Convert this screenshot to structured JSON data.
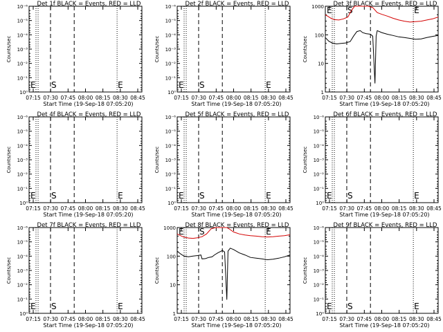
{
  "chart_data": [
    {
      "type": "line",
      "title": "Det 1f BLACK = Events, RED = LLD",
      "xlabel": "Start Time (19-Sep-18 07:05:20)",
      "ylabel": "Counts/sec",
      "y_ticks": [
        "10⁻⁶",
        "10⁻⁵",
        "10⁻⁴",
        "10⁻³",
        "10⁻²",
        "10⁻¹",
        "10⁰"
      ],
      "x_ticks": [
        "07:15",
        "07:30",
        "07:45",
        "08:00",
        "08:15",
        "08:30",
        "08:45"
      ],
      "marker_s": "S",
      "marker_e": "E",
      "y_scale": "log",
      "has_data": false,
      "series": []
    },
    {
      "type": "line",
      "title": "Det 2f BLACK = Events, RED = LLD",
      "xlabel": "Start Time (19-Sep-18 07:05:20)",
      "ylabel": "Counts/sec",
      "y_ticks": [
        "10⁻⁶",
        "10⁻⁵",
        "10⁻⁴",
        "10⁻³",
        "10⁻²",
        "10⁻¹",
        "10⁰"
      ],
      "x_ticks": [
        "07:15",
        "07:30",
        "07:45",
        "08:00",
        "08:15",
        "08:30",
        "08:45"
      ],
      "marker_s": "S",
      "marker_e": "E",
      "y_scale": "log",
      "has_data": false,
      "series": []
    },
    {
      "type": "line",
      "title": "Det 3f BLACK = Events, RED = LLD",
      "xlabel": "Start Time (19-Sep-18 07:05:20)",
      "ylabel": "Counts/sec",
      "y_ticks": [
        "1000",
        "100",
        "10",
        "1"
      ],
      "x_ticks": [
        "07:15",
        "07:30",
        "07:45",
        "08:00",
        "08:15",
        "08:30",
        "08:45"
      ],
      "marker_s": "S",
      "marker_e": "E",
      "y_scale": "log",
      "has_data": true,
      "series": [
        {
          "color": "#d40000",
          "x": [
            0,
            0.02,
            0.05,
            0.08,
            0.12,
            0.16,
            0.2,
            0.23,
            0.26,
            0.3,
            0.34,
            0.38,
            0.42,
            0.46,
            0.5,
            0.55,
            0.6,
            0.65,
            0.7,
            0.75,
            0.8,
            0.85,
            0.9,
            0.95,
            1
          ],
          "y": [
            500,
            450,
            380,
            340,
            330,
            360,
            420,
            700,
            1300,
            1600,
            1600,
            1500,
            900,
            600,
            520,
            450,
            380,
            330,
            300,
            280,
            290,
            300,
            330,
            360,
            420
          ]
        },
        {
          "color": "#000000",
          "x": [
            0,
            0.03,
            0.06,
            0.1,
            0.14,
            0.18,
            0.22,
            0.25,
            0.28,
            0.31,
            0.33,
            0.36,
            0.4,
            0.42,
            0.44,
            0.45,
            0.46,
            0.5,
            0.55,
            0.6,
            0.65,
            0.7,
            0.75,
            0.8,
            0.85,
            0.9,
            0.95,
            1
          ],
          "y": [
            80,
            60,
            52,
            48,
            50,
            52,
            58,
            90,
            130,
            140,
            120,
            110,
            105,
            90,
            2,
            90,
            140,
            120,
            105,
            95,
            85,
            80,
            75,
            70,
            72,
            80,
            88,
            95
          ]
        }
      ]
    },
    {
      "type": "line",
      "title": "Det 4f BLACK = Events, RED = LLD",
      "xlabel": "Start Time (19-Sep-18 07:05:20)",
      "ylabel": "Counts/sec",
      "y_ticks": [
        "10⁻⁶",
        "10⁻⁵",
        "10⁻⁴",
        "10⁻³",
        "10⁻²",
        "10⁻¹",
        "10⁰"
      ],
      "x_ticks": [
        "07:15",
        "07:30",
        "07:45",
        "08:00",
        "08:15",
        "08:30",
        "08:45"
      ],
      "marker_s": "S",
      "marker_e": "E",
      "y_scale": "log",
      "has_data": false,
      "series": []
    },
    {
      "type": "line",
      "title": "Det 5f BLACK = Events, RED = LLD",
      "xlabel": "Start Time (19-Sep-18 07:05:20)",
      "ylabel": "Counts/sec",
      "y_ticks": [
        "10⁻⁶",
        "10⁻⁵",
        "10⁻⁴",
        "10⁻³",
        "10⁻²",
        "10⁻¹",
        "10⁰"
      ],
      "x_ticks": [
        "07:15",
        "07:30",
        "07:45",
        "08:00",
        "08:15",
        "08:30",
        "08:45"
      ],
      "marker_s": "S",
      "marker_e": "E",
      "y_scale": "log",
      "has_data": false,
      "series": []
    },
    {
      "type": "line",
      "title": "Det 6f BLACK = Events, RED = LLD",
      "xlabel": "Start Time (19-Sep-18 07:05:20)",
      "ylabel": "Counts/sec",
      "y_ticks": [
        "10⁻⁶",
        "10⁻⁵",
        "10⁻⁴",
        "10⁻³",
        "10⁻²",
        "10⁻¹",
        "10⁰"
      ],
      "x_ticks": [
        "07:15",
        "07:30",
        "07:45",
        "08:00",
        "08:15",
        "08:30",
        "08:45"
      ],
      "marker_s": "S",
      "marker_e": "E",
      "y_scale": "log",
      "has_data": false,
      "series": []
    },
    {
      "type": "line",
      "title": "Det 7f BLACK = Events, RED = LLD",
      "xlabel": "Start Time (19-Sep-18 07:05:20)",
      "ylabel": "Counts/sec",
      "y_ticks": [
        "10⁻⁶",
        "10⁻⁵",
        "10⁻⁴",
        "10⁻³",
        "10⁻²",
        "10⁻¹",
        "10⁰"
      ],
      "x_ticks": [
        "07:15",
        "07:30",
        "07:45",
        "08:00",
        "08:15",
        "08:30",
        "08:45"
      ],
      "marker_s": "S",
      "marker_e": "E",
      "y_scale": "log",
      "has_data": false,
      "series": []
    },
    {
      "type": "line",
      "title": "Det 8f BLACK = Events, RED = LLD",
      "xlabel": "Start Time (19-Sep-18 07:05:20)",
      "ylabel": "Counts/sec",
      "y_ticks": [
        "1000",
        "100",
        "10",
        "1"
      ],
      "x_ticks": [
        "07:15",
        "07:30",
        "07:45",
        "08:00",
        "08:15",
        "08:30",
        "08:45"
      ],
      "marker_s": "S",
      "marker_e": "E",
      "y_scale": "log",
      "has_data": true,
      "series": [
        {
          "color": "#d40000",
          "x": [
            0,
            0.03,
            0.06,
            0.1,
            0.14,
            0.18,
            0.22,
            0.26,
            0.3,
            0.34,
            0.38,
            0.42,
            0.44,
            0.46,
            0.5,
            0.55,
            0.6,
            0.65,
            0.7,
            0.75,
            0.8,
            0.85,
            0.9,
            0.95,
            1
          ],
          "y": [
            600,
            520,
            460,
            430,
            420,
            440,
            480,
            600,
            900,
            1300,
            1500,
            1400,
            1200,
            900,
            700,
            600,
            550,
            520,
            500,
            480,
            470,
            480,
            500,
            520,
            560
          ]
        },
        {
          "color": "#000000",
          "x": [
            0,
            0.03,
            0.06,
            0.1,
            0.14,
            0.18,
            0.21,
            0.22,
            0.25,
            0.28,
            0.31,
            0.33,
            0.36,
            0.39,
            0.4,
            0.41,
            0.42,
            0.44,
            0.45,
            0.47,
            0.5,
            0.55,
            0.6,
            0.65,
            0.7,
            0.75,
            0.8,
            0.85,
            0.9,
            0.95,
            1
          ],
          "y": [
            150,
            120,
            100,
            95,
            100,
            105,
            110,
            80,
            82,
            90,
            95,
            110,
            130,
            150,
            160,
            150,
            140,
            3,
            150,
            190,
            170,
            130,
            110,
            90,
            85,
            80,
            75,
            78,
            85,
            95,
            110
          ]
        }
      ]
    },
    {
      "type": "line",
      "title": "Det 9f BLACK = Events, RED = LLD",
      "xlabel": "Start Time (19-Sep-18 07:05:20)",
      "ylabel": "Counts/sec",
      "y_ticks": [
        "10⁻⁶",
        "10⁻⁵",
        "10⁻⁴",
        "10⁻³",
        "10⁻²",
        "10⁻¹",
        "10⁰"
      ],
      "x_ticks": [
        "07:15",
        "07:30",
        "07:45",
        "08:00",
        "08:15",
        "08:30",
        "08:45"
      ],
      "marker_s": "S",
      "marker_e": "E",
      "y_scale": "log",
      "has_data": false,
      "series": []
    }
  ]
}
